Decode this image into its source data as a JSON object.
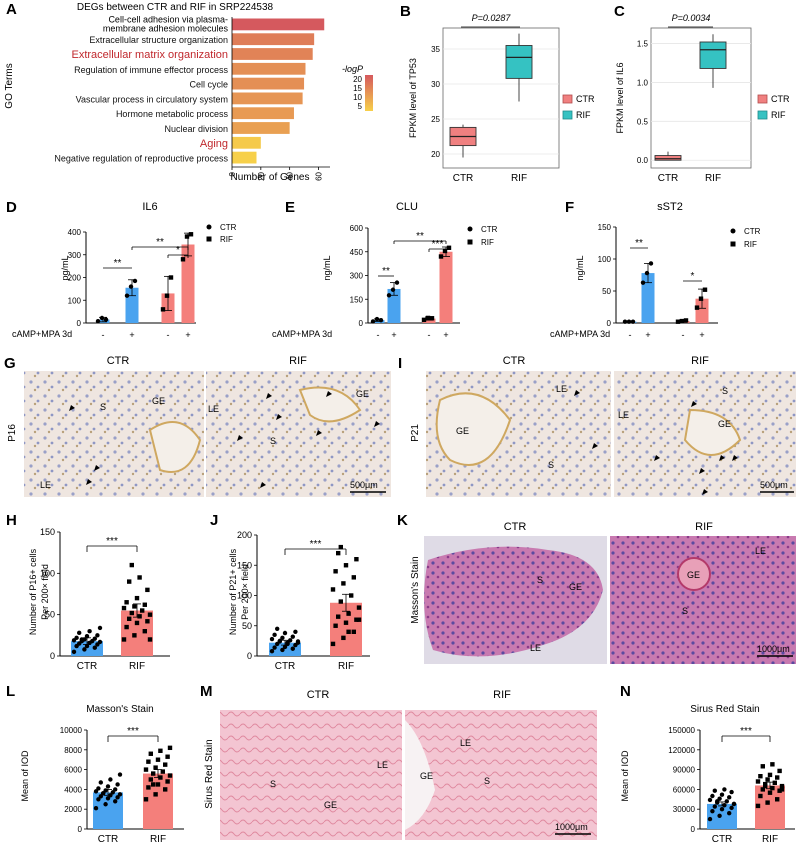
{
  "colors": {
    "ctr_blue": "#4aa3ef",
    "rif_red": "#f47f7b",
    "box_red": "#f08080",
    "box_teal": "#35c2c2",
    "go_hi": "#d5595e",
    "go_lo": "#f7d04a",
    "pink": "#e08aa0"
  },
  "panels": {
    "A": "A",
    "B": "B",
    "C": "C",
    "D": "D",
    "E": "E",
    "F": "F",
    "G": "G",
    "H": "H",
    "I": "I",
    "J": "J",
    "K": "K",
    "L": "L",
    "M": "M",
    "N": "N"
  },
  "panelA": {
    "title": "DEGs between CTR and RIF in SRP224538",
    "ylabel": "GO Terms",
    "xlabel": "Number of Genes",
    "legend_title": "-logP",
    "legend_ticks": [
      "20",
      "15",
      "10",
      "5"
    ],
    "x_ticks": [
      "0",
      "20",
      "40",
      "60"
    ]
  },
  "panelB": {
    "pvalue": "P=0.0287",
    "ylabel": "FPKM level of TP53",
    "legend": [
      "CTR",
      "RIF"
    ]
  },
  "panelC": {
    "pvalue": "P=0.0034",
    "ylabel": "FPKM level of IL6",
    "legend": [
      "CTR",
      "RIF"
    ]
  },
  "panelD": {
    "title": "IL6",
    "ylabel": "pg/mL",
    "legend": [
      "CTR",
      "RIF"
    ],
    "treatment": "cAMP+MPA 3d",
    "signs": [
      "-",
      "+",
      "-",
      "+"
    ],
    "sig": [
      "**",
      "**",
      "*"
    ]
  },
  "panelE": {
    "title": "CLU",
    "ylabel": "ng/mL",
    "legend": [
      "CTR",
      "RIF"
    ],
    "treatment": "cAMP+MPA 3d",
    "signs": [
      "-",
      "+",
      "-",
      "+"
    ],
    "sig": [
      "**",
      "**",
      "***"
    ]
  },
  "panelF": {
    "title": "sST2",
    "ylabel": "ng/mL",
    "legend": [
      "CTR",
      "RIF"
    ],
    "treatment": "cAMP+MPA 3d",
    "signs": [
      "-",
      "+",
      "-",
      "+"
    ],
    "sig": [
      "**",
      "*"
    ]
  },
  "panelG": {
    "left": "CTR",
    "right": "RIF",
    "side": "P16",
    "scale": "500μm",
    "labels": [
      "S",
      "GE",
      "LE",
      "LE",
      "S",
      "GE"
    ]
  },
  "panelI": {
    "left": "CTR",
    "right": "RIF",
    "side": "P21",
    "scale": "500μm",
    "labels": [
      "LE",
      "GE",
      "S",
      "S",
      "LE",
      "GE"
    ]
  },
  "panelK": {
    "left": "CTR",
    "right": "RIF",
    "side": "Masson's Stain",
    "scale": "1000μm",
    "labels": [
      "S",
      "GE",
      "LE",
      "LE",
      "GE",
      "S"
    ]
  },
  "panelM": {
    "left": "CTR",
    "right": "RIF",
    "side": "Sirus Red Stain",
    "scale": "1000μm",
    "labels": [
      "S",
      "GE",
      "LE",
      "LE",
      "GE",
      "S"
    ]
  },
  "panelH": {
    "ylabel1": "Number of P16+ cells",
    "ylabel2": "Per 200× field",
    "sig": "***"
  },
  "panelJ": {
    "ylabel1": "Number of P21+ cells",
    "ylabel2": "Per 200× field",
    "sig": "***"
  },
  "panelL": {
    "title": "Masson's Stain",
    "ylabel": "Mean of IOD",
    "sig": "***"
  },
  "panelN": {
    "title": "Sirus Red Stain",
    "ylabel": "Mean of IOD",
    "sig": "***"
  },
  "chart_data": [
    {
      "id": "A",
      "type": "bar",
      "orientation": "horizontal",
      "title": "DEGs between CTR and RIF in SRP224538",
      "xlabel": "Number of Genes",
      "ylabel": "GO Terms",
      "xlim": [
        0,
        68
      ],
      "categories": [
        "Cell-cell adhesion via plasma-membrane adhesion molecules",
        "Extracellular structure organization",
        "Extracellular matrix organization",
        "Regulation of immune effector process",
        "Cell cycle",
        "Vascular process in circulatory system",
        "Hormone metabolic process",
        "Nuclear division",
        "Aging",
        "Negative regulation of reproductive process"
      ],
      "highlight": [
        "Extracellular matrix organization",
        "Aging"
      ],
      "values": [
        64,
        57,
        56,
        51,
        50,
        49,
        43,
        40,
        20,
        17
      ],
      "neglogP": [
        23,
        17,
        16,
        14,
        14,
        13,
        12,
        11,
        4,
        3
      ]
    },
    {
      "id": "B",
      "type": "box",
      "ylabel": "FPKM level of TP53",
      "categories": [
        "CTR",
        "RIF"
      ],
      "ylim": [
        18,
        38
      ],
      "yticks": [
        20,
        25,
        30,
        35
      ],
      "boxes": [
        {
          "name": "CTR",
          "min": 19.5,
          "q1": 21.2,
          "median": 22.5,
          "q3": 23.8,
          "max": 24.2
        },
        {
          "name": "RIF",
          "min": 27.5,
          "q1": 30.8,
          "median": 33.8,
          "q3": 35.5,
          "max": 37.2
        }
      ]
    },
    {
      "id": "C",
      "type": "box",
      "ylabel": "FPKM level of IL6",
      "categories": [
        "CTR",
        "RIF"
      ],
      "ylim": [
        -0.1,
        1.7
      ],
      "yticks": [
        0.0,
        0.5,
        1.0,
        1.5
      ],
      "boxes": [
        {
          "name": "CTR",
          "min": 0.0,
          "q1": 0.0,
          "median": 0.02,
          "q3": 0.06,
          "max": 0.11
        },
        {
          "name": "RIF",
          "min": 0.93,
          "q1": 1.18,
          "median": 1.42,
          "q3": 1.52,
          "max": 1.62
        }
      ]
    },
    {
      "id": "D",
      "type": "bar",
      "title": "IL6",
      "ylabel": "pg/mL",
      "ylim": [
        0,
        400
      ],
      "yticks": [
        0,
        100,
        200,
        300,
        400
      ],
      "categories": [
        "CTR -",
        "CTR +",
        "RIF -",
        "RIF +"
      ],
      "values": [
        15,
        155,
        130,
        345
      ],
      "errors": [
        10,
        35,
        75,
        50
      ],
      "points": [
        [
          8,
          22,
          15
        ],
        [
          120,
          160,
          185
        ],
        [
          60,
          120,
          200
        ],
        [
          280,
          380,
          390
        ]
      ]
    },
    {
      "id": "E",
      "type": "bar",
      "title": "CLU",
      "ylabel": "ng/mL",
      "ylim": [
        0,
        600
      ],
      "yticks": [
        0,
        150,
        300,
        450,
        600
      ],
      "categories": [
        "CTR -",
        "CTR +",
        "RIF -",
        "RIF +"
      ],
      "values": [
        18,
        215,
        28,
        450
      ],
      "errors": [
        8,
        40,
        10,
        30
      ],
      "points": [
        [
          10,
          25,
          18
        ],
        [
          175,
          210,
          255
        ],
        [
          20,
          32,
          30
        ],
        [
          420,
          455,
          475
        ]
      ]
    },
    {
      "id": "F",
      "type": "bar",
      "title": "sST2",
      "ylabel": "ng/mL",
      "ylim": [
        0,
        150
      ],
      "yticks": [
        0,
        50,
        100,
        150
      ],
      "categories": [
        "CTR -",
        "CTR +",
        "RIF -",
        "RIF +"
      ],
      "values": [
        2,
        78,
        3,
        38
      ],
      "errors": [
        1,
        15,
        2,
        15
      ],
      "points": [
        [
          2,
          2,
          2
        ],
        [
          63,
          78,
          93
        ],
        [
          2,
          3,
          4
        ],
        [
          24,
          38,
          52
        ]
      ]
    },
    {
      "id": "H",
      "type": "bar",
      "ylabel": "Number of P16+ cells Per 200× field",
      "ylim": [
        0,
        150
      ],
      "yticks": [
        0,
        50,
        100,
        150
      ],
      "categories": [
        "CTR",
        "RIF"
      ],
      "values": [
        18,
        55
      ],
      "errors": [
        4,
        8
      ],
      "points": [
        [
          5,
          8,
          10,
          12,
          12,
          14,
          15,
          16,
          17,
          18,
          18,
          19,
          20,
          21,
          22,
          24,
          25,
          28,
          30,
          34,
          20
        ],
        [
          20,
          25,
          30,
          35,
          40,
          42,
          45,
          48,
          50,
          52,
          55,
          58,
          60,
          62,
          65,
          70,
          80,
          90,
          95,
          20,
          110
        ]
      ]
    },
    {
      "id": "J",
      "type": "bar",
      "ylabel": "Number of P21+ cells Per 200× field",
      "ylim": [
        0,
        200
      ],
      "yticks": [
        0,
        50,
        100,
        150,
        200
      ],
      "categories": [
        "CTR",
        "RIF"
      ],
      "values": [
        22,
        88
      ],
      "errors": [
        4,
        14
      ],
      "points": [
        [
          8,
          10,
          12,
          14,
          15,
          18,
          20,
          22,
          24,
          25,
          26,
          28,
          30,
          32,
          35,
          38,
          40,
          45,
          20,
          22,
          24
        ],
        [
          20,
          30,
          40,
          50,
          55,
          60,
          65,
          70,
          80,
          90,
          100,
          110,
          120,
          130,
          140,
          150,
          160,
          170,
          40,
          60,
          180
        ]
      ]
    },
    {
      "id": "L",
      "type": "bar",
      "title": "Masson's Stain",
      "ylabel": "Mean of IOD",
      "ylim": [
        0,
        10000
      ],
      "yticks": [
        0,
        2000,
        4000,
        6000,
        8000,
        10000
      ],
      "categories": [
        "CTR",
        "RIF"
      ],
      "values": [
        3700,
        5600
      ],
      "errors": [
        300,
        400
      ],
      "points": [
        [
          2100,
          2500,
          2800,
          3000,
          3100,
          3200,
          3300,
          3400,
          3500,
          3600,
          3700,
          3800,
          3900,
          4000,
          4100,
          4300,
          4500,
          4700,
          5000,
          5500,
          3600
        ],
        [
          3000,
          3500,
          4000,
          4200,
          4500,
          4800,
          5000,
          5200,
          5400,
          5600,
          5800,
          6000,
          6200,
          6500,
          6800,
          7000,
          7300,
          7600,
          7900,
          8200,
          4500
        ]
      ]
    },
    {
      "id": "N",
      "type": "bar",
      "title": "Sirus Red Stain",
      "ylabel": "Mean of IOD",
      "ylim": [
        0,
        150000
      ],
      "yticks": [
        0,
        30000,
        60000,
        90000,
        120000,
        150000
      ],
      "categories": [
        "CTR",
        "RIF"
      ],
      "values": [
        38000,
        66000
      ],
      "errors": [
        3000,
        5000
      ],
      "points": [
        [
          15000,
          20000,
          24000,
          27000,
          30000,
          32000,
          34000,
          36000,
          38000,
          40000,
          42000,
          44000,
          46000,
          48000,
          50000,
          52000,
          56000,
          58000,
          60000,
          38000,
          42000
        ],
        [
          35000,
          40000,
          45000,
          50000,
          55000,
          58000,
          60000,
          62000,
          65000,
          68000,
          70000,
          72000,
          75000,
          78000,
          80000,
          82000,
          88000,
          95000,
          98000,
          60000,
          65000
        ]
      ]
    }
  ]
}
